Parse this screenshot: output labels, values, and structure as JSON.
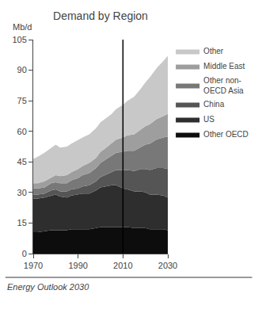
{
  "chart_data": {
    "type": "area",
    "title": "Demand by Region",
    "ylabel": "Mb/d",
    "stacked": true,
    "x": [
      1970,
      1972,
      1975,
      1978,
      1980,
      1982,
      1985,
      1987,
      1990,
      1992,
      1995,
      1998,
      2000,
      2002,
      2005,
      2007,
      2010,
      2012,
      2015,
      2018,
      2020,
      2022,
      2025,
      2028,
      2030
    ],
    "series": [
      {
        "name": "Other OECD",
        "color": "#0d0d0d",
        "values": [
          10.5,
          10.5,
          11.0,
          11.5,
          11.5,
          11.5,
          11.5,
          12.0,
          12.0,
          12.0,
          12.0,
          12.5,
          13.0,
          13.0,
          13.0,
          13.0,
          13.0,
          13.0,
          12.5,
          12.5,
          12.5,
          12.0,
          12.0,
          12.0,
          11.5
        ]
      },
      {
        "name": "US",
        "color": "#2e2e2e",
        "values": [
          16.5,
          16.5,
          16.5,
          17.0,
          17.5,
          16.5,
          16.0,
          16.5,
          17.0,
          17.5,
          17.5,
          18.5,
          19.5,
          20.0,
          20.5,
          20.5,
          19.0,
          18.5,
          18.0,
          18.0,
          17.5,
          17.0,
          17.0,
          16.5,
          16.0
        ]
      },
      {
        "name": "China",
        "color": "#555555",
        "values": [
          2.0,
          2.0,
          2.0,
          2.5,
          2.5,
          2.5,
          3.0,
          3.0,
          3.0,
          3.5,
          4.0,
          4.5,
          5.0,
          5.5,
          6.5,
          7.5,
          9.0,
          9.5,
          10.0,
          11.0,
          11.5,
          12.0,
          13.0,
          13.5,
          14.0
        ]
      },
      {
        "name": "Other non-\nOECD Asia",
        "color": "#787878",
        "values": [
          3.0,
          3.0,
          3.0,
          3.5,
          3.5,
          4.0,
          4.0,
          4.5,
          5.0,
          5.5,
          6.0,
          6.5,
          7.0,
          7.5,
          8.0,
          8.5,
          9.0,
          9.5,
          10.0,
          11.0,
          12.0,
          13.0,
          14.0,
          15.0,
          16.0
        ]
      },
      {
        "name": "Middle East",
        "color": "#9e9e9e",
        "values": [
          2.5,
          2.5,
          3.0,
          3.0,
          3.5,
          3.5,
          4.0,
          4.0,
          4.5,
          4.5,
          5.0,
          5.0,
          5.5,
          5.5,
          6.0,
          6.5,
          7.0,
          7.5,
          8.0,
          8.5,
          9.0,
          9.5,
          10.0,
          10.5,
          11.0
        ]
      },
      {
        "name": "Other",
        "color": "#c8c8c8",
        "values": [
          12.0,
          13.0,
          14.0,
          14.5,
          15.0,
          14.0,
          14.0,
          14.0,
          14.5,
          14.0,
          14.0,
          14.5,
          14.5,
          14.5,
          14.5,
          15.0,
          16.0,
          17.0,
          18.5,
          20.0,
          21.5,
          23.0,
          25.0,
          27.0,
          28.5
        ]
      }
    ],
    "vlines": [
      2010
    ],
    "xlim": [
      1970,
      2030
    ],
    "ylim": [
      0,
      105
    ],
    "xticks": [
      1970,
      1990,
      2010,
      2030
    ],
    "yticks": [
      0,
      15,
      30,
      45,
      60,
      75,
      90,
      105
    ],
    "grid": false,
    "legend": "right",
    "annotations": [
      "Energy Outlook 2030"
    ]
  }
}
